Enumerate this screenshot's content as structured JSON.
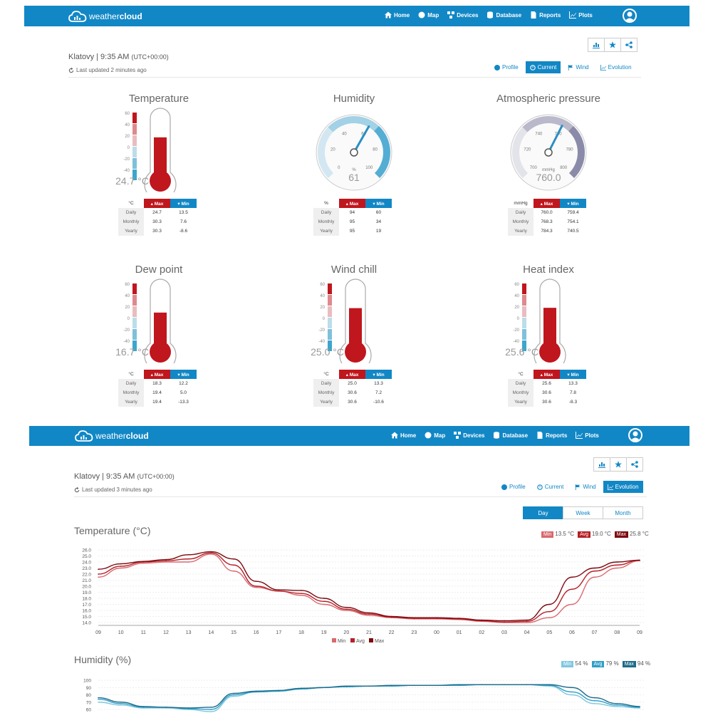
{
  "brand": {
    "name_light": "weather",
    "name_bold": "cloud"
  },
  "nav": [
    {
      "label": "Home",
      "icon": "home-icon"
    },
    {
      "label": "Map",
      "icon": "globe-icon"
    },
    {
      "label": "Devices",
      "icon": "devices-icon"
    },
    {
      "label": "Database",
      "icon": "database-icon"
    },
    {
      "label": "Reports",
      "icon": "document-icon"
    },
    {
      "label": "Plots",
      "icon": "chart-icon"
    }
  ],
  "top": {
    "station": "Klatovy | 9:35 AM",
    "timezone": "(UTC+00:00)",
    "updated": "Last updated 2 minutes ago",
    "tabs": [
      "Profile",
      "Current",
      "Wind",
      "Evolution"
    ],
    "active_tab": "Current"
  },
  "colors": {
    "brand": "#1287c5",
    "max": "#c0161d",
    "min": "#1287c5"
  },
  "widgets": [
    {
      "title": "Temperature",
      "type": "thermo",
      "value": "24.7 °C",
      "level": 0.647,
      "unit": "°C",
      "rows": [
        [
          "Daily",
          "24.7",
          "13.5"
        ],
        [
          "Monthly",
          "30.3",
          "7.6"
        ],
        [
          "Yearly",
          "30.3",
          "-8.6"
        ]
      ]
    },
    {
      "title": "Humidity",
      "type": "gauge-hum",
      "value": "61",
      "unit_label": "%",
      "level": 61,
      "unit": "%",
      "ticks": [
        "0",
        "20",
        "40",
        "60",
        "80",
        "100"
      ],
      "rows": [
        [
          "Daily",
          "94",
          "60"
        ],
        [
          "Monthly",
          "95",
          "34"
        ],
        [
          "Yearly",
          "95",
          "19"
        ]
      ]
    },
    {
      "title": "Atmospheric pressure",
      "type": "gauge-pres",
      "value": "760.0",
      "unit_label": "mmHg",
      "level": 760.0,
      "unit": "mmHg",
      "ticks": [
        "700",
        "720",
        "740",
        "760",
        "780",
        "800"
      ],
      "rows": [
        [
          "Daily",
          "760.0",
          "759.4"
        ],
        [
          "Monthly",
          "768.3",
          "754.1"
        ],
        [
          "Yearly",
          "784.3",
          "740.5"
        ]
      ]
    },
    {
      "title": "Dew point",
      "type": "thermo",
      "value": "16.7 °C",
      "level": 0.568,
      "unit": "°C",
      "rows": [
        [
          "Daily",
          "18.3",
          "12.2"
        ],
        [
          "Monthly",
          "19.4",
          "5.0"
        ],
        [
          "Yearly",
          "19.4",
          "-13.3"
        ]
      ]
    },
    {
      "title": "Wind chill",
      "type": "thermo",
      "value": "25.0 °C",
      "level": 0.65,
      "unit": "°C",
      "rows": [
        [
          "Daily",
          "25.0",
          "13.3"
        ],
        [
          "Monthly",
          "30.6",
          "7.2"
        ],
        [
          "Yearly",
          "30.6",
          "-10.6"
        ]
      ]
    },
    {
      "title": "Heat index",
      "type": "thermo",
      "value": "25.6 °C",
      "level": 0.656,
      "unit": "°C",
      "rows": [
        [
          "Daily",
          "25.6",
          "13.3"
        ],
        [
          "Monthly",
          "30.6",
          "7.8"
        ],
        [
          "Yearly",
          "30.6",
          "-8.3"
        ]
      ]
    }
  ],
  "thermo_ticks": [
    "60",
    "40",
    "20",
    "0",
    "-20",
    "-40"
  ],
  "table_headers": {
    "max": "Max",
    "min": "Min"
  },
  "bottom": {
    "station": "Klatovy | 9:35 AM",
    "timezone": "(UTC+00:00)",
    "updated": "Last updated 3 minutes ago",
    "tabs": [
      "Profile",
      "Current",
      "Wind",
      "Evolution"
    ],
    "active_tab": "Evolution",
    "ranges": [
      "Day",
      "Week",
      "Month"
    ],
    "active_range": "Day"
  },
  "chart_data": [
    {
      "type": "line",
      "title": "Temperature (°C)",
      "badges": [
        {
          "label": "Min",
          "value": "13.5 °C",
          "color": "#d9686e"
        },
        {
          "label": "Avg",
          "value": "19.0 °C",
          "color": "#b51f26"
        },
        {
          "label": "Max",
          "value": "25.8 °C",
          "color": "#7c0a10"
        }
      ],
      "legend": [
        "Min",
        "Avg",
        "Max"
      ],
      "x": [
        "09",
        "10",
        "11",
        "12",
        "13",
        "14",
        "15",
        "16",
        "17",
        "18",
        "19",
        "20",
        "21",
        "22",
        "23",
        "00",
        "01",
        "02",
        "03",
        "04",
        "05",
        "06",
        "07",
        "08",
        "09"
      ],
      "ylim": [
        14.0,
        26.0
      ],
      "yticks": [
        "26.0",
        "25.0",
        "24.0",
        "23.0",
        "22.0",
        "21.0",
        "20.0",
        "19.0",
        "18.0",
        "17.0",
        "16.0",
        "15.0",
        "14.0"
      ],
      "series": [
        {
          "name": "Min",
          "color": "#d9686e",
          "values": [
            21.5,
            23.0,
            23.8,
            24.0,
            24.0,
            25.3,
            22.5,
            19.8,
            19.2,
            18.5,
            17.0,
            16.0,
            15.2,
            14.8,
            14.6,
            14.6,
            14.5,
            14.2,
            14.0,
            14.0,
            14.8,
            17.0,
            21.5,
            23.0,
            24.2
          ]
        },
        {
          "name": "Avg",
          "color": "#b51f26",
          "values": [
            22.0,
            23.3,
            24.0,
            24.2,
            24.5,
            25.5,
            23.5,
            20.0,
            19.2,
            18.8,
            17.5,
            16.2,
            15.4,
            14.9,
            14.7,
            14.7,
            14.6,
            14.3,
            14.1,
            14.2,
            15.8,
            19.5,
            22.5,
            23.5,
            24.3
          ]
        },
        {
          "name": "Max",
          "color": "#7c0a10",
          "values": [
            22.8,
            23.7,
            24.1,
            24.4,
            25.2,
            25.7,
            24.5,
            20.8,
            19.4,
            19.3,
            18.0,
            16.5,
            15.6,
            15.0,
            14.8,
            14.8,
            14.7,
            14.4,
            14.3,
            14.4,
            17.0,
            21.5,
            23.0,
            24.0,
            24.3
          ]
        }
      ]
    },
    {
      "type": "line",
      "title": "Humidity (%)",
      "badges": [
        {
          "label": "Min",
          "value": "54 %",
          "color": "#7fc7e0"
        },
        {
          "label": "Avg",
          "value": "79 %",
          "color": "#2e9fc7"
        },
        {
          "label": "Max",
          "value": "94 %",
          "color": "#1e6b8a"
        }
      ],
      "ylim": [
        60,
        100
      ],
      "yticks": [
        "100",
        "90",
        "80",
        "70",
        "60"
      ],
      "series": [
        {
          "name": "Min",
          "color": "#7fc7e0",
          "values": [
            70,
            66,
            62,
            62,
            60,
            57,
            78,
            84,
            85,
            88,
            90,
            91,
            92,
            92,
            93,
            93,
            93,
            94,
            94,
            94,
            92,
            80,
            68,
            64,
            62
          ]
        },
        {
          "name": "Avg",
          "color": "#2e9fc7",
          "values": [
            74,
            68,
            63,
            63,
            61,
            60,
            80,
            84,
            85,
            88,
            90,
            91,
            92,
            92,
            93,
            93,
            93,
            94,
            94,
            94,
            93,
            84,
            72,
            66,
            63
          ]
        },
        {
          "name": "Max",
          "color": "#1e6b8a",
          "values": [
            76,
            70,
            64,
            63,
            62,
            63,
            82,
            85,
            86,
            89,
            90,
            92,
            92,
            93,
            93,
            93,
            94,
            94,
            94,
            94,
            94,
            90,
            76,
            68,
            64
          ]
        }
      ]
    }
  ]
}
